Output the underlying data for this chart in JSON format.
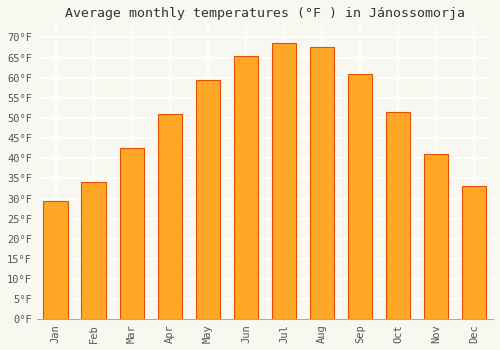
{
  "title": "Average monthly temperatures (°F ) in Jánossomorja",
  "months": [
    "Jan",
    "Feb",
    "Mar",
    "Apr",
    "May",
    "Jun",
    "Jul",
    "Aug",
    "Sep",
    "Oct",
    "Nov",
    "Dec"
  ],
  "values": [
    29.5,
    34.0,
    42.5,
    51.0,
    59.5,
    65.5,
    68.5,
    67.5,
    61.0,
    51.5,
    41.0,
    33.0
  ],
  "bar_color": "#FFA726",
  "bar_edge_color": "#E65100",
  "ylim": [
    0,
    73
  ],
  "yticks": [
    0,
    5,
    10,
    15,
    20,
    25,
    30,
    35,
    40,
    45,
    50,
    55,
    60,
    65,
    70
  ],
  "background_color": "#f8f8f0",
  "grid_color": "#ffffff",
  "title_fontsize": 9.5,
  "tick_fontsize": 7.5,
  "fig_width": 5.0,
  "fig_height": 3.5,
  "dpi": 100
}
